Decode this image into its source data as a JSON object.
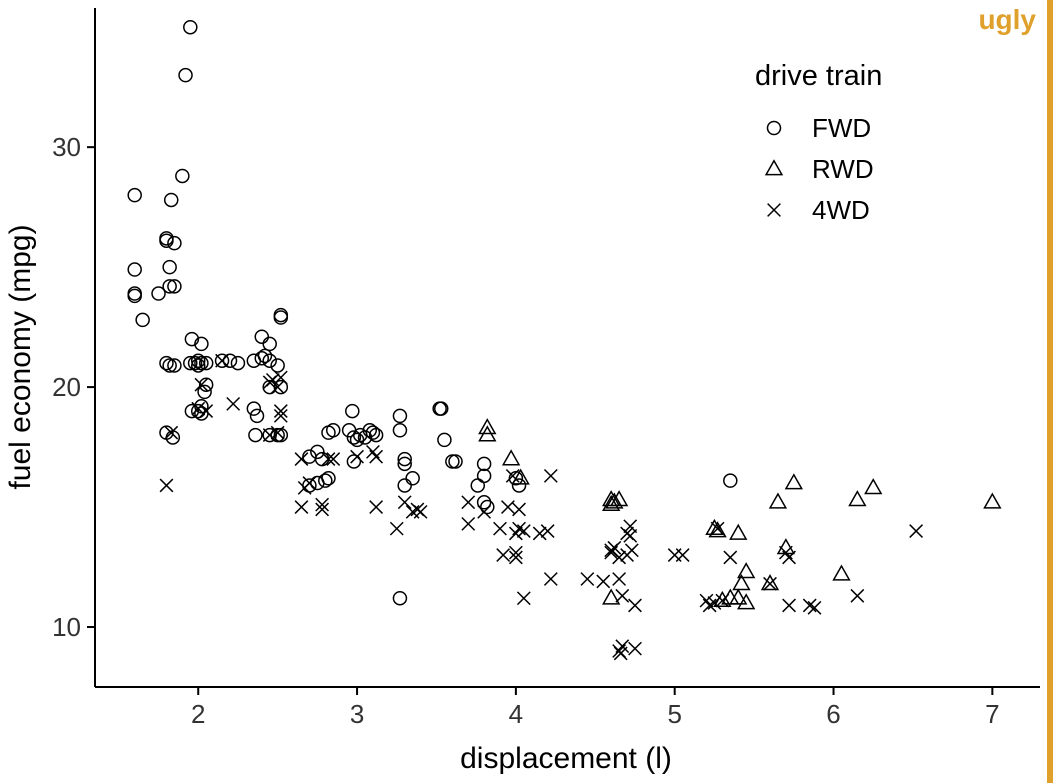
{
  "badge": {
    "text": "ugly",
    "color": "#e0a02c"
  },
  "chart_data": {
    "type": "scatter",
    "xlabel": "displacement (l)",
    "ylabel": "fuel economy (mpg)",
    "xlim": [
      1.35,
      7.3
    ],
    "ylim": [
      7.5,
      35.8
    ],
    "xticks": [
      2,
      3,
      4,
      5,
      6,
      7
    ],
    "yticks": [
      10,
      20,
      30
    ],
    "grid": false,
    "legend": {
      "title": "drive train",
      "placement": "top-right"
    },
    "series": [
      {
        "name": "FWD",
        "marker": "circle",
        "points": [
          [
            1.6,
            28
          ],
          [
            1.6,
            24.9
          ],
          [
            1.6,
            23.9
          ],
          [
            1.6,
            23.8
          ],
          [
            1.65,
            22.8
          ],
          [
            1.75,
            23.9
          ],
          [
            1.8,
            26.2
          ],
          [
            1.8,
            26.1
          ],
          [
            1.82,
            25
          ],
          [
            1.82,
            24.2
          ],
          [
            1.85,
            24.2
          ],
          [
            1.83,
            27.8
          ],
          [
            1.85,
            26
          ],
          [
            1.9,
            28.8
          ],
          [
            1.92,
            33
          ],
          [
            1.95,
            35
          ],
          [
            1.8,
            21
          ],
          [
            1.82,
            20.9
          ],
          [
            1.85,
            20.9
          ],
          [
            1.96,
            22
          ],
          [
            1.95,
            21
          ],
          [
            1.98,
            21
          ],
          [
            2.0,
            20.9
          ],
          [
            2.0,
            21.1
          ],
          [
            2.02,
            21
          ],
          [
            2.02,
            21.8
          ],
          [
            2.05,
            21
          ],
          [
            2.0,
            19
          ],
          [
            2.02,
            19.2
          ],
          [
            2.04,
            19.8
          ],
          [
            2.05,
            20.1
          ],
          [
            2.02,
            18.9
          ],
          [
            1.96,
            19
          ],
          [
            1.8,
            18.1
          ],
          [
            1.84,
            17.9
          ],
          [
            2.15,
            21.1
          ],
          [
            2.2,
            21.1
          ],
          [
            2.25,
            21
          ],
          [
            2.35,
            21.1
          ],
          [
            2.4,
            21.2
          ],
          [
            2.42,
            21.3
          ],
          [
            2.45,
            21.8
          ],
          [
            2.4,
            22.1
          ],
          [
            2.45,
            21.1
          ],
          [
            2.45,
            20
          ],
          [
            2.5,
            20.9
          ],
          [
            2.52,
            22.9
          ],
          [
            2.52,
            23
          ],
          [
            2.52,
            20
          ],
          [
            2.35,
            19.1
          ],
          [
            2.37,
            18.8
          ],
          [
            2.36,
            18
          ],
          [
            2.45,
            18
          ],
          [
            2.5,
            18
          ],
          [
            2.52,
            18
          ],
          [
            2.7,
            17.1
          ],
          [
            2.75,
            17.3
          ],
          [
            2.78,
            17
          ],
          [
            2.8,
            16.1
          ],
          [
            2.82,
            16.2
          ],
          [
            2.75,
            16
          ],
          [
            2.7,
            15.9
          ],
          [
            2.82,
            18.1
          ],
          [
            2.85,
            18.2
          ],
          [
            2.95,
            18.2
          ],
          [
            2.98,
            17.9
          ],
          [
            3.0,
            17.8
          ],
          [
            3.02,
            18
          ],
          [
            2.97,
            19
          ],
          [
            2.98,
            16.9
          ],
          [
            3.05,
            17.9
          ],
          [
            3.08,
            18.2
          ],
          [
            3.1,
            18.1
          ],
          [
            3.12,
            18
          ],
          [
            3.27,
            18.8
          ],
          [
            3.27,
            18.2
          ],
          [
            3.3,
            17
          ],
          [
            3.3,
            16.8
          ],
          [
            3.35,
            16.2
          ],
          [
            3.3,
            15.9
          ],
          [
            3.27,
            11.2
          ],
          [
            3.52,
            19.1
          ],
          [
            3.53,
            19.1
          ],
          [
            3.55,
            17.8
          ],
          [
            3.6,
            16.9
          ],
          [
            3.62,
            16.9
          ],
          [
            3.76,
            15.9
          ],
          [
            3.8,
            16.8
          ],
          [
            3.8,
            16.3
          ],
          [
            3.8,
            15.2
          ],
          [
            3.82,
            15
          ],
          [
            4.0,
            16.2
          ],
          [
            4.02,
            15.9
          ],
          [
            5.35,
            16.1
          ]
        ]
      },
      {
        "name": "RWD",
        "marker": "triangle",
        "points": [
          [
            3.82,
            18.3
          ],
          [
            3.82,
            18
          ],
          [
            3.97,
            17
          ],
          [
            4.03,
            16.2
          ],
          [
            4.6,
            15.3
          ],
          [
            4.6,
            11.2
          ],
          [
            4.6,
            15.1
          ],
          [
            4.65,
            15.3
          ],
          [
            4.62,
            15.2
          ],
          [
            5.25,
            14.1
          ],
          [
            5.27,
            14
          ],
          [
            5.3,
            11.1
          ],
          [
            5.35,
            11.2
          ],
          [
            5.4,
            13.9
          ],
          [
            5.4,
            11.2
          ],
          [
            5.42,
            11.8
          ],
          [
            5.45,
            12.3
          ],
          [
            5.45,
            11
          ],
          [
            5.65,
            15.2
          ],
          [
            5.7,
            13.3
          ],
          [
            5.75,
            16
          ],
          [
            6.05,
            12.2
          ],
          [
            6.15,
            15.3
          ],
          [
            6.25,
            15.8
          ],
          [
            7.0,
            15.2
          ],
          [
            5.6,
            11.8
          ]
        ]
      },
      {
        "name": "4WD",
        "marker": "cross",
        "points": [
          [
            1.8,
            15.9
          ],
          [
            1.83,
            18.1
          ],
          [
            2.0,
            19.1
          ],
          [
            2.02,
            20.1
          ],
          [
            2.05,
            19
          ],
          [
            2.15,
            21.1
          ],
          [
            2.22,
            19.3
          ],
          [
            2.45,
            20.2
          ],
          [
            2.47,
            20.3
          ],
          [
            2.5,
            20
          ],
          [
            2.52,
            20.4
          ],
          [
            2.45,
            18
          ],
          [
            2.5,
            18.1
          ],
          [
            2.52,
            19
          ],
          [
            2.52,
            18.8
          ],
          [
            2.65,
            17
          ],
          [
            2.65,
            15
          ],
          [
            2.67,
            15.8
          ],
          [
            2.7,
            16
          ],
          [
            2.78,
            15.1
          ],
          [
            2.78,
            14.9
          ],
          [
            2.82,
            17
          ],
          [
            2.85,
            17
          ],
          [
            3.0,
            17.1
          ],
          [
            3.1,
            17.3
          ],
          [
            3.12,
            17.1
          ],
          [
            3.12,
            15
          ],
          [
            3.25,
            14.1
          ],
          [
            3.35,
            14.8
          ],
          [
            3.38,
            14.9
          ],
          [
            3.4,
            14.8
          ],
          [
            3.3,
            15.2
          ],
          [
            3.7,
            15.2
          ],
          [
            3.7,
            14.3
          ],
          [
            3.8,
            14.8
          ],
          [
            3.9,
            14.1
          ],
          [
            3.92,
            13
          ],
          [
            3.95,
            15
          ],
          [
            3.98,
            16.3
          ],
          [
            4.0,
            13.9
          ],
          [
            4.02,
            14.9
          ],
          [
            4.0,
            13.1
          ],
          [
            4.0,
            12.9
          ],
          [
            4.02,
            14.1
          ],
          [
            4.05,
            14
          ],
          [
            4.05,
            11.2
          ],
          [
            4.15,
            13.9
          ],
          [
            4.2,
            14
          ],
          [
            4.22,
            12
          ],
          [
            4.22,
            16.3
          ],
          [
            4.45,
            12
          ],
          [
            4.55,
            11.9
          ],
          [
            4.6,
            13.1
          ],
          [
            4.6,
            13.2
          ],
          [
            4.62,
            13.3
          ],
          [
            4.65,
            12.9
          ],
          [
            4.65,
            12
          ],
          [
            4.67,
            11.3
          ],
          [
            4.65,
            9
          ],
          [
            4.67,
            9.2
          ],
          [
            4.66,
            8.9
          ],
          [
            4.7,
            13.9
          ],
          [
            4.72,
            14.2
          ],
          [
            4.73,
            13.2
          ],
          [
            4.75,
            10.9
          ],
          [
            4.75,
            9.1
          ],
          [
            4.7,
            13
          ],
          [
            4.72,
            13.8
          ],
          [
            5.0,
            13
          ],
          [
            5.05,
            13
          ],
          [
            5.2,
            11.1
          ],
          [
            5.22,
            10.9
          ],
          [
            5.25,
            11
          ],
          [
            5.27,
            14.1
          ],
          [
            5.3,
            11.1
          ],
          [
            5.35,
            12.9
          ],
          [
            5.6,
            11.8
          ],
          [
            5.7,
            13.1
          ],
          [
            5.72,
            12.9
          ],
          [
            5.72,
            10.9
          ],
          [
            5.85,
            10.9
          ],
          [
            5.88,
            10.8
          ],
          [
            6.15,
            11.3
          ],
          [
            6.52,
            14
          ]
        ]
      }
    ]
  }
}
